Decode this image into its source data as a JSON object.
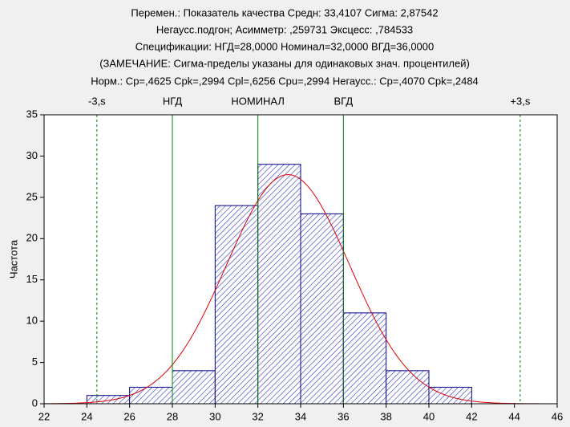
{
  "chart_data": {
    "type": "histogram",
    "title_lines": [
      "Перемен.: Показатель качества  Средн: 33,4107     Сигма: 2,87542",
      "Негаусс.подгон; Асимметр: ,259731          Эксцесс:  ,784533",
      "Спецификации: НГД=28,0000 Номинал=32,0000 ВГД=36,0000",
      "(ЗАМЕЧАНИЕ: Сигма-пределы указаны для одинаковых знач. процентилей)",
      "Норм.: Cp=,4625 Cpk=,2994 Cpl=,6256 Cpu=,2994  Негаусс.:  Cp=,4070 Cpk=,2484"
    ],
    "ylabel": "Частота",
    "bins": [
      24,
      26,
      28,
      30,
      32,
      34,
      36,
      38,
      40,
      42
    ],
    "values": [
      1,
      2,
      4,
      24,
      29,
      23,
      11,
      4,
      2
    ],
    "color": "#00008b",
    "curve": {
      "mean": 33.4107,
      "sd": 2.87542,
      "color": "#e00000"
    },
    "reference_lines": [
      {
        "label": "-3,s",
        "value": 24.47,
        "style": "dashed"
      },
      {
        "label": "НГД",
        "value": 28,
        "style": "solid"
      },
      {
        "label": "НОМИНАЛ",
        "value": 32,
        "style": "solid"
      },
      {
        "label": "ВГД",
        "value": 36,
        "style": "solid"
      },
      {
        "label": "+3,s",
        "value": 44.27,
        "style": "dashed"
      }
    ],
    "reference_color": "#008000",
    "xlim": [
      22,
      46
    ],
    "xticks": [
      22,
      24,
      26,
      28,
      30,
      32,
      34,
      36,
      38,
      40,
      42,
      44,
      46
    ],
    "ylim": [
      0,
      35
    ],
    "yticks": [
      0,
      5,
      10,
      15,
      20,
      25,
      30,
      35
    ]
  }
}
